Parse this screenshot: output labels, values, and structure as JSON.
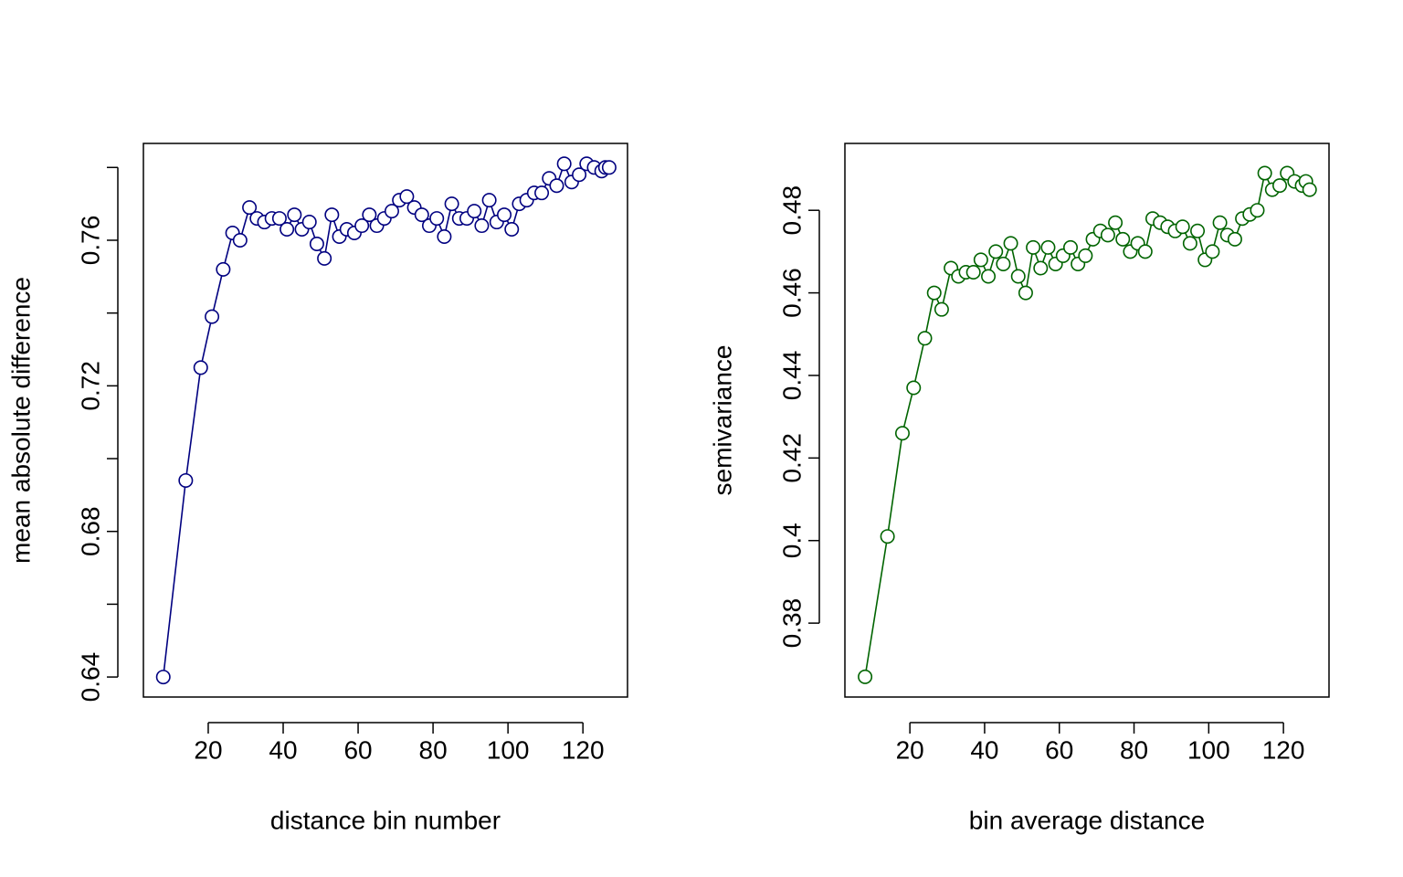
{
  "chart_data": [
    {
      "type": "line",
      "xlabel": "distance bin number",
      "ylabel": "mean absolute difference",
      "color": "#000080",
      "x": [
        8,
        14,
        18,
        21,
        24,
        26.5,
        28.5,
        31,
        33,
        35,
        37,
        39,
        41,
        43,
        45,
        47,
        49,
        51,
        53,
        55,
        57,
        59,
        61,
        63,
        65,
        67,
        69,
        71,
        73,
        75,
        77,
        79,
        81,
        83,
        85,
        87,
        89,
        91,
        93,
        95,
        97,
        99,
        101,
        103,
        105,
        107,
        109,
        111,
        113,
        115,
        117,
        119,
        121,
        123,
        125,
        126,
        127
      ],
      "values": [
        0.64,
        0.694,
        0.725,
        0.739,
        0.752,
        0.762,
        0.76,
        0.769,
        0.766,
        0.765,
        0.766,
        0.766,
        0.763,
        0.767,
        0.763,
        0.765,
        0.759,
        0.755,
        0.767,
        0.761,
        0.763,
        0.762,
        0.764,
        0.767,
        0.764,
        0.766,
        0.768,
        0.771,
        0.772,
        0.769,
        0.767,
        0.764,
        0.766,
        0.761,
        0.77,
        0.766,
        0.766,
        0.768,
        0.764,
        0.771,
        0.765,
        0.767,
        0.763,
        0.77,
        0.771,
        0.773,
        0.773,
        0.777,
        0.775,
        0.781,
        0.776,
        0.778,
        0.781,
        0.78,
        0.779,
        0.78,
        0.78
      ],
      "xlim": [
        2.7,
        131.9
      ],
      "ylim": [
        0.6345,
        0.7866
      ],
      "xticks": [
        20,
        40,
        60,
        80,
        100,
        120
      ],
      "yticks": [
        0.64,
        0.68,
        0.72,
        0.76
      ],
      "yminorticks": [
        0.66,
        0.7,
        0.74,
        0.78
      ]
    },
    {
      "type": "line",
      "xlabel": "bin average distance",
      "ylabel": "semivariance",
      "color": "#006400",
      "x": [
        8,
        14,
        18,
        21,
        24,
        26.5,
        28.5,
        31,
        33,
        35,
        37,
        39,
        41,
        43,
        45,
        47,
        49,
        51,
        53,
        55,
        57,
        59,
        61,
        63,
        65,
        67,
        69,
        71,
        73,
        75,
        77,
        79,
        81,
        83,
        85,
        87,
        89,
        91,
        93,
        95,
        97,
        99,
        101,
        103,
        105,
        107,
        109,
        111,
        113,
        115,
        117,
        119,
        121,
        123,
        125,
        126,
        127
      ],
      "values": [
        0.367,
        0.401,
        0.426,
        0.437,
        0.449,
        0.46,
        0.456,
        0.466,
        0.464,
        0.465,
        0.465,
        0.468,
        0.464,
        0.47,
        0.467,
        0.472,
        0.464,
        0.46,
        0.471,
        0.466,
        0.471,
        0.467,
        0.469,
        0.471,
        0.467,
        0.469,
        0.473,
        0.475,
        0.474,
        0.477,
        0.473,
        0.47,
        0.472,
        0.47,
        0.478,
        0.477,
        0.476,
        0.475,
        0.476,
        0.472,
        0.475,
        0.468,
        0.47,
        0.477,
        0.474,
        0.473,
        0.478,
        0.479,
        0.48,
        0.489,
        0.485,
        0.486,
        0.489,
        0.487,
        0.486,
        0.487,
        0.485
      ],
      "xlim": [
        2.6,
        132.2
      ],
      "ylim": [
        0.3621,
        0.4962
      ],
      "xticks": [
        20,
        40,
        60,
        80,
        100,
        120
      ],
      "yticks": [
        0.38,
        0.4,
        0.42,
        0.44,
        0.46,
        0.48
      ]
    }
  ]
}
